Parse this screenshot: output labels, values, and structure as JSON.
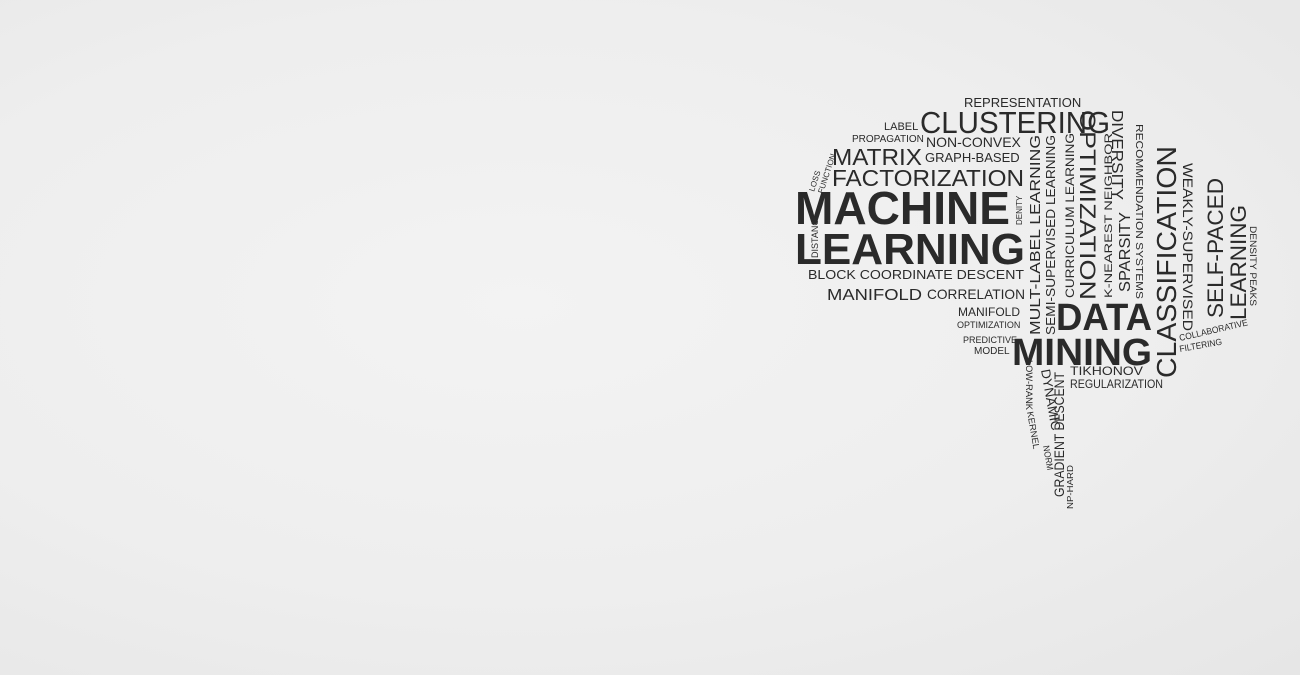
{
  "background_color": "#ededed",
  "word_color": "#2a2a2a",
  "words": {
    "representation": "REPRESENTATION",
    "label": "LABEL",
    "clustering": "CLUSTERING",
    "propagation": "PROPAGATION",
    "non_convex": "NON-CONVEX",
    "matrix": "MATRIX",
    "graph_based": "GRAPH-BASED",
    "loss": "LOSS",
    "function": "FUNCTION",
    "factorization": "FACTORIZATION",
    "machine": "MACHINE",
    "learning": "LEARNING",
    "distance": "DISTANCE",
    "denity": "DENITY",
    "block_coordinate_descent": "BLOCK COORDINATE DESCENT",
    "manifold": "MANIFOLD",
    "correlation": "CORRELATION",
    "manifold_small": "MANIFOLD",
    "optimization_small": "OPTIMIZATION",
    "predictive": "PREDICTIVE",
    "model": "MODEL",
    "mult_label_learning": "MULT-LABEL LEARNING",
    "semi_supervised_learning": "SEMI-SUPERVISED LEARNING",
    "curriculum_learning": "CURRICULUM LEARNING",
    "optimization": "OPTIMIZATION",
    "k_nearest_neighbor": "K-NEAREST NEIGHBOR",
    "sparsity": "SPARSITY",
    "diversity": "DIVERSITY",
    "recommendation_systems": "RECOMMENDATION SYSTEMS",
    "classification": "CLASSIFICATION",
    "weakly_supervised": "WEAKLY-SUPERVISED",
    "self_paced": "SELF-PACED",
    "learning_right": "LEARNING",
    "density_peaks": "DENSITY PEAKS",
    "data": "DATA",
    "mining": "MINING",
    "collaborative": "COLLABORATIVE",
    "filtering": "FILTERING",
    "tikhonov": "TIKHONOV",
    "regularization": "REGULARIZATION",
    "low_rank": "LOW-RANK",
    "kernel": "KERNEL",
    "dynamic": "DYNAMIC",
    "norm": "NORM",
    "gradient_descent": "GRADIENT DESCENT",
    "np_hard": "NP-HARD"
  }
}
